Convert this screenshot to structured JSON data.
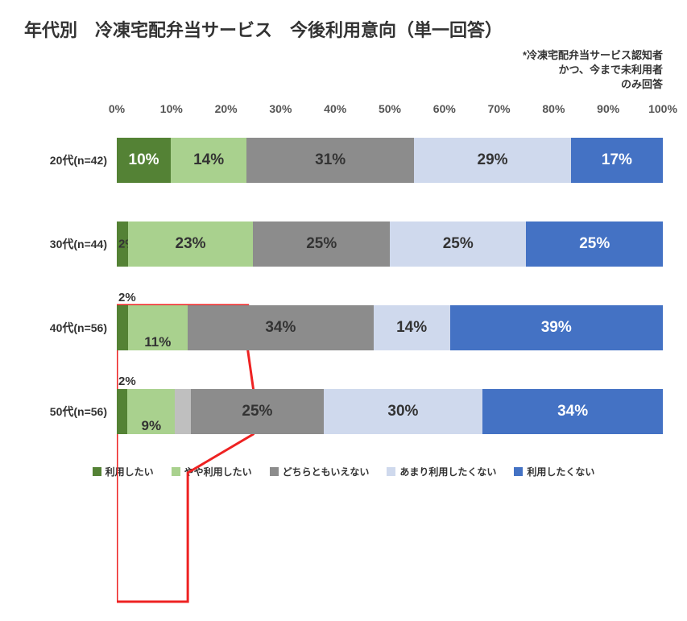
{
  "title": "年代別　冷凍宅配弁当サービス　今後利用意向（単一回答）",
  "title_fontsize": 22,
  "subtitle_line1": "*冷凍宅配弁当サービス認知者",
  "subtitle_line2": "かつ、今まで未利用者",
  "subtitle_line3": "のみ回答",
  "subtitle_fontsize": 13,
  "xaxis": {
    "min": 0,
    "max": 100,
    "step": 10,
    "ticks": [
      0,
      10,
      20,
      30,
      40,
      50,
      60,
      70,
      80,
      90,
      100
    ],
    "tick_labels": [
      "0%",
      "10%",
      "20%",
      "30%",
      "40%",
      "50%",
      "60%",
      "70%",
      "80%",
      "90%",
      "100%"
    ]
  },
  "series": [
    {
      "key": "want",
      "label": "利用したい",
      "color": "#548235"
    },
    {
      "key": "somewhat",
      "label": "やや利用したい",
      "color": "#a9d18e"
    },
    {
      "key": "neutral",
      "label": "どちらともいえない",
      "color": "#8c8c8c"
    },
    {
      "key": "not_much",
      "label": "あまり利用したくない",
      "color": "#cfd9ed"
    },
    {
      "key": "dont_want",
      "label": "利用したくない",
      "color": "#4472c4"
    }
  ],
  "rows": [
    {
      "label": "20代(n=42)",
      "values": [
        10,
        14,
        31,
        29,
        17
      ],
      "display": [
        "10%",
        "14%",
        "31%",
        "29%",
        "17%"
      ],
      "text_colors": [
        "#ffffff",
        "#333333",
        "#333333",
        "#333333",
        "#ffffff"
      ],
      "label_fontsize": [
        19,
        19,
        19,
        19,
        19
      ],
      "label_offset_y": [
        0,
        0,
        0,
        0,
        0
      ]
    },
    {
      "label": "30代(n=44)",
      "values": [
        2,
        23,
        25,
        25,
        25
      ],
      "display": [
        "2%",
        "23%",
        "25%",
        "25%",
        "25%"
      ],
      "text_colors": [
        "#333333",
        "#333333",
        "#333333",
        "#333333",
        "#ffffff"
      ],
      "label_fontsize": [
        15,
        19,
        19,
        19,
        19
      ],
      "label_offset_y": [
        0,
        0,
        0,
        0,
        0
      ]
    },
    {
      "label": "40代(n=56)",
      "values": [
        2,
        11,
        34,
        14,
        39
      ],
      "display": [
        "2%",
        "11%",
        "34%",
        "14%",
        "39%"
      ],
      "text_colors": [
        "#333333",
        "#333333",
        "#333333",
        "#333333",
        "#ffffff"
      ],
      "label_fontsize": [
        15,
        17,
        19,
        19,
        19
      ],
      "label_offset_y": [
        -18,
        18,
        0,
        0,
        0
      ]
    },
    {
      "label": "50代(n=56)",
      "values": [
        2,
        9,
        25,
        30,
        34
      ],
      "display": [
        "2%",
        "9%",
        "25%",
        "30%",
        "34%"
      ],
      "text_colors": [
        "#333333",
        "#333333",
        "#333333",
        "#333333",
        "#ffffff"
      ],
      "label_fontsize": [
        15,
        17,
        19,
        19,
        19
      ],
      "label_offset_y": [
        -18,
        18,
        0,
        0,
        0
      ]
    }
  ],
  "extra_grey_50s": {
    "enabled": true,
    "width_pct": 3
  },
  "highlight": {
    "border_color": "#ee2222",
    "border_width": 3,
    "points_pct": [
      [
        0,
        0
      ],
      [
        24,
        0
      ],
      [
        24,
        25
      ],
      [
        25,
        25
      ],
      [
        25,
        50
      ],
      [
        13,
        50
      ],
      [
        13,
        75
      ],
      [
        13,
        75
      ],
      [
        13,
        100
      ],
      [
        0,
        100
      ]
    ]
  },
  "colors": {
    "background": "#ffffff",
    "grid": "#e0e0e0",
    "tick_text": "#555555",
    "label_text": "#333333"
  }
}
